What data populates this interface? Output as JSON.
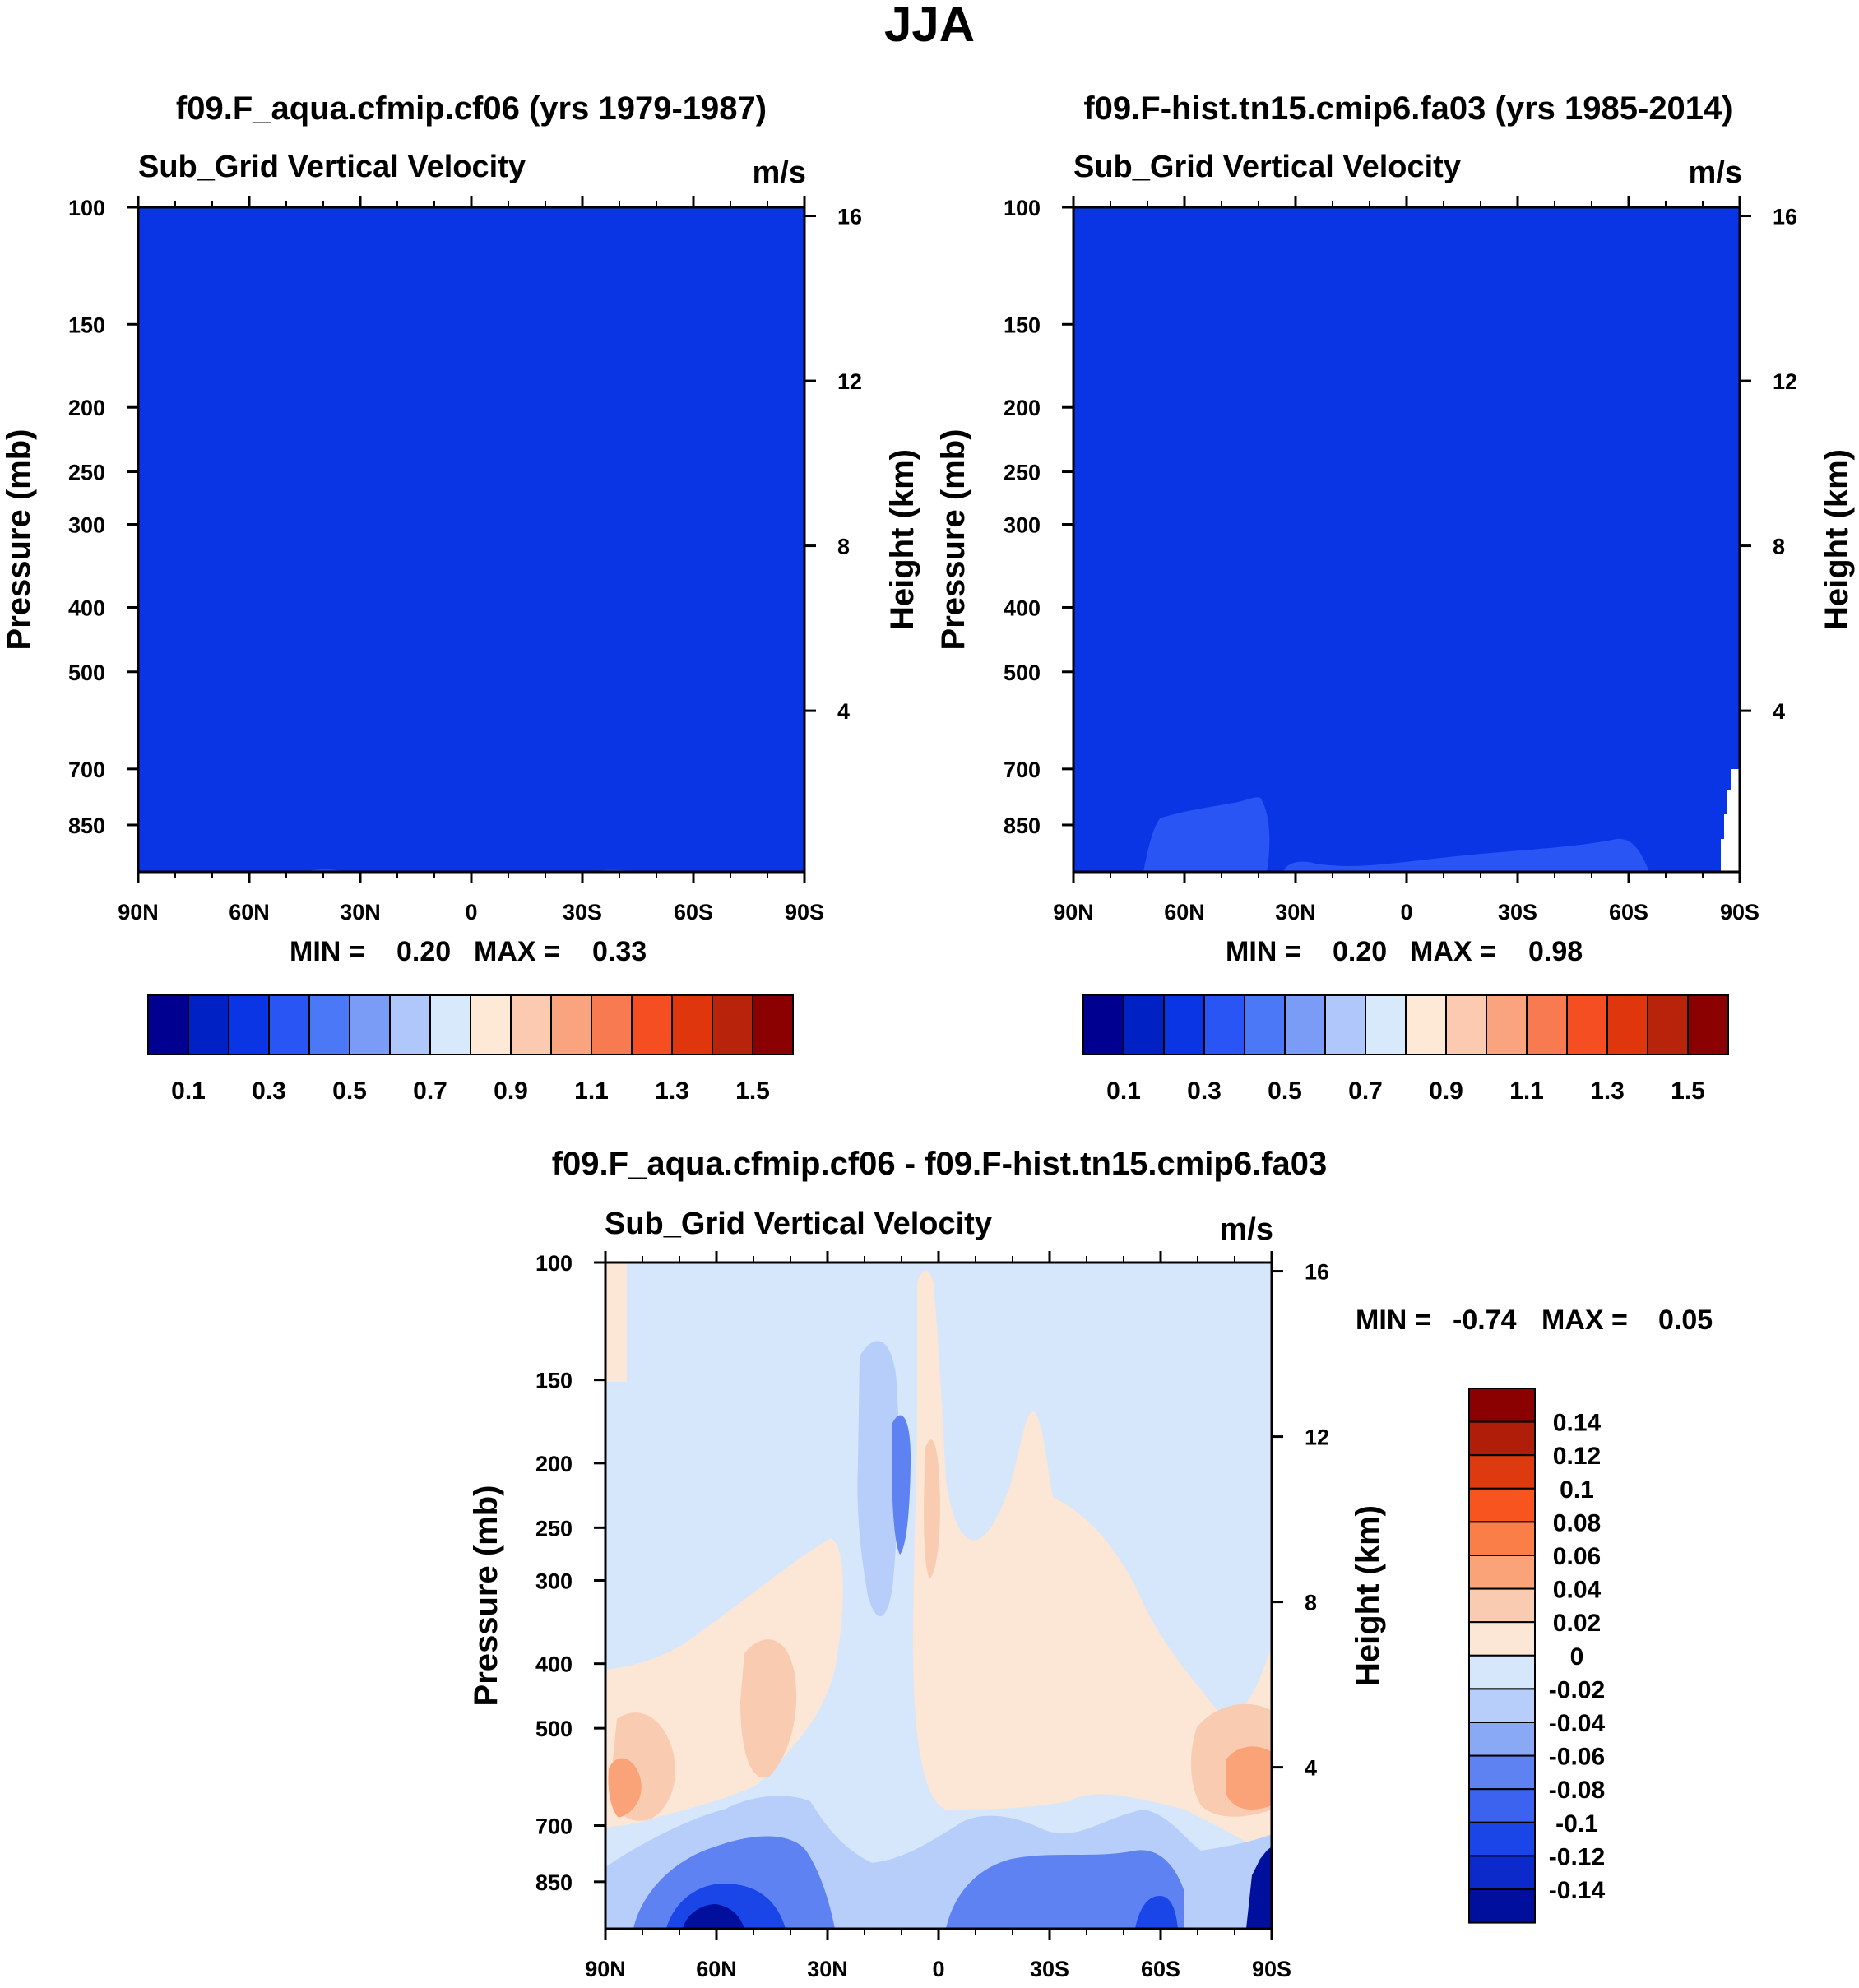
{
  "figure_title": "JJA",
  "colors": {
    "cb_seq": [
      "#000090",
      "#0022c4",
      "#0a35e5",
      "#2a55f5",
      "#4a78f7",
      "#7a9cf7",
      "#afc7fb",
      "#d8e9fc",
      "#fde9d6",
      "#fccab0",
      "#faa47f",
      "#f77a50",
      "#f44e22",
      "#e0360e",
      "#b8240b",
      "#8b0000"
    ],
    "diff_seq": [
      "#8b0000",
      "#b01e0a",
      "#dd3a0f",
      "#f7541f",
      "#fa7e47",
      "#fba378",
      "#f9cbb0",
      "#fce6d6",
      "#d6e7fb",
      "#b6cef9",
      "#8aa9f5",
      "#5e82f2",
      "#3b63ef",
      "#1a46e8",
      "#0b2ac9",
      "#00109c"
    ],
    "field_base": "#0a35e5",
    "field_light": "#2a55f5",
    "diff_base": "#d6e7fb",
    "diff_pos": "#fce6d6",
    "diff_pos2": "#f9cbb0",
    "diff_pos3": "#fba378"
  },
  "chart_data": [
    {
      "type": "heatmap",
      "title": "f09.F_aqua.cfmip.cf06 (yrs 1979-1987)",
      "subtitle": "Sub_Grid Vertical Velocity",
      "units": "m/s",
      "ylabel": "Pressure (mb)",
      "ylabel_right": "Height (km)",
      "x_ticks": [
        "90N",
        "60N",
        "30N",
        "0",
        "30S",
        "60S",
        "90S"
      ],
      "x_values": [
        90,
        60,
        30,
        0,
        -30,
        -60,
        -90
      ],
      "y_ticks": [
        "100",
        "150",
        "200",
        "250",
        "300",
        "400",
        "500",
        "700",
        "850"
      ],
      "y_values": [
        100,
        150,
        200,
        250,
        300,
        400,
        500,
        700,
        850
      ],
      "y_right_ticks": [
        "16",
        "12",
        "8",
        "4"
      ],
      "y_right_values": [
        16,
        12,
        8,
        4
      ],
      "ylim_pressure": [
        100,
        1000
      ],
      "min_label": "MIN =",
      "min_value": "0.20",
      "max_label": "MAX =",
      "max_value": "0.33",
      "colorbar_levels": [
        "0.1",
        "0.3",
        "0.5",
        "0.7",
        "0.9",
        "1.1",
        "1.3",
        "1.5"
      ],
      "colorbar_level_values": [
        0.1,
        0.3,
        0.5,
        0.7,
        0.9,
        1.1,
        1.3,
        1.5
      ]
    },
    {
      "type": "heatmap",
      "title": "f09.F-hist.tn15.cmip6.fa03 (yrs 1985-2014)",
      "subtitle": "Sub_Grid Vertical Velocity",
      "units": "m/s",
      "ylabel": "Pressure (mb)",
      "ylabel_right": "Height (km)",
      "x_ticks": [
        "90N",
        "60N",
        "30N",
        "0",
        "30S",
        "60S",
        "90S"
      ],
      "x_values": [
        90,
        60,
        30,
        0,
        -30,
        -60,
        -90
      ],
      "y_ticks": [
        "100",
        "150",
        "200",
        "250",
        "300",
        "400",
        "500",
        "700",
        "850"
      ],
      "y_values": [
        100,
        150,
        200,
        250,
        300,
        400,
        500,
        700,
        850
      ],
      "y_right_ticks": [
        "16",
        "12",
        "8",
        "4"
      ],
      "y_right_values": [
        16,
        12,
        8,
        4
      ],
      "ylim_pressure": [
        100,
        1000
      ],
      "min_label": "MIN =",
      "min_value": "0.20",
      "max_label": "MAX =",
      "max_value": "0.98",
      "colorbar_levels": [
        "0.1",
        "0.3",
        "0.5",
        "0.7",
        "0.9",
        "1.1",
        "1.3",
        "1.5"
      ],
      "colorbar_level_values": [
        0.1,
        0.3,
        0.5,
        0.7,
        0.9,
        1.1,
        1.3,
        1.5
      ]
    },
    {
      "type": "heatmap",
      "title": "f09.F_aqua.cfmip.cf06 - f09.F-hist.tn15.cmip6.fa03",
      "subtitle": "Sub_Grid Vertical Velocity",
      "units": "m/s",
      "ylabel": "Pressure (mb)",
      "ylabel_right": "Height (km)",
      "x_ticks": [
        "90N",
        "60N",
        "30N",
        "0",
        "30S",
        "60S",
        "90S"
      ],
      "x_values": [
        90,
        60,
        30,
        0,
        -30,
        -60,
        -90
      ],
      "y_ticks": [
        "100",
        "150",
        "200",
        "250",
        "300",
        "400",
        "500",
        "700",
        "850"
      ],
      "y_values": [
        100,
        150,
        200,
        250,
        300,
        400,
        500,
        700,
        850
      ],
      "y_right_ticks": [
        "16",
        "12",
        "8",
        "4"
      ],
      "y_right_values": [
        16,
        12,
        8,
        4
      ],
      "ylim_pressure": [
        100,
        1000
      ],
      "min_label": "MIN =",
      "min_value": "-0.74",
      "max_label": "MAX =",
      "max_value": "0.05",
      "colorbar_levels": [
        "0.14",
        "0.12",
        "0.1",
        "0.08",
        "0.06",
        "0.04",
        "0.02",
        "0",
        "-0.02",
        "-0.04",
        "-0.06",
        "-0.08",
        "-0.1",
        "-0.12",
        "-0.14"
      ],
      "colorbar_level_values": [
        0.14,
        0.12,
        0.1,
        0.08,
        0.06,
        0.04,
        0.02,
        0,
        -0.02,
        -0.04,
        -0.06,
        -0.08,
        -0.1,
        -0.12,
        -0.14
      ]
    }
  ]
}
